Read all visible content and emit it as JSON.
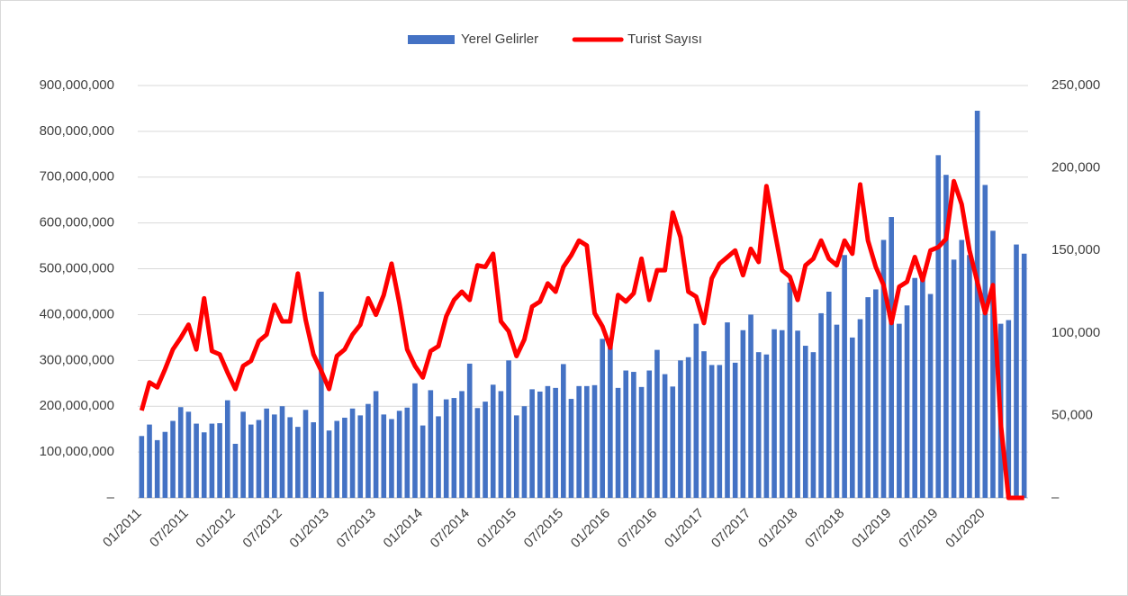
{
  "chart_data": {
    "type": "bar_line",
    "categories": [
      "01/2011",
      null,
      null,
      null,
      null,
      null,
      "07/2011",
      null,
      null,
      null,
      null,
      null,
      "01/2012",
      null,
      null,
      null,
      null,
      null,
      "07/2012",
      null,
      null,
      null,
      null,
      null,
      "01/2013",
      null,
      null,
      null,
      null,
      null,
      "07/2013",
      null,
      null,
      null,
      null,
      null,
      "01/2014",
      null,
      null,
      null,
      null,
      null,
      "07/2014",
      null,
      null,
      null,
      null,
      null,
      "01/2015",
      null,
      null,
      null,
      null,
      null,
      "07/2015",
      null,
      null,
      null,
      null,
      null,
      "01/2016",
      null,
      null,
      null,
      null,
      null,
      "07/2016",
      null,
      null,
      null,
      null,
      null,
      "01/2017",
      null,
      null,
      null,
      null,
      null,
      "07/2017",
      null,
      null,
      null,
      null,
      null,
      "01/2018",
      null,
      null,
      null,
      null,
      null,
      "07/2018",
      null,
      null,
      null,
      null,
      null,
      "01/2019",
      null,
      null,
      null,
      null,
      null,
      "07/2019",
      null,
      null,
      null,
      null,
      null,
      "01/2020",
      null,
      null,
      null,
      null,
      null
    ],
    "series": [
      {
        "name": "Yerel Gelirler",
        "color": "#4472c4",
        "kind": "bar",
        "values": [
          135000000,
          160000000,
          126000000,
          144000000,
          168000000,
          198000000,
          188000000,
          162000000,
          143000000,
          162000000,
          163000000,
          213000000,
          118000000,
          188000000,
          160000000,
          170000000,
          195000000,
          182000000,
          200000000,
          176000000,
          155000000,
          192000000,
          165000000,
          450000000,
          147000000,
          168000000,
          175000000,
          195000000,
          180000000,
          205000000,
          233000000,
          182000000,
          172000000,
          190000000,
          197000000,
          250000000,
          158000000,
          235000000,
          178000000,
          215000000,
          218000000,
          233000000,
          293000000,
          196000000,
          210000000,
          247000000,
          233000000,
          300000000,
          180000000,
          200000000,
          237000000,
          232000000,
          244000000,
          240000000,
          292000000,
          216000000,
          244000000,
          244000000,
          246000000,
          347000000,
          335000000,
          240000000,
          278000000,
          275000000,
          242000000,
          278000000,
          323000000,
          270000000,
          243000000,
          300000000,
          307000000,
          380000000,
          320000000,
          290000000,
          290000000,
          383000000,
          295000000,
          366000000,
          400000000,
          318000000,
          313000000,
          368000000,
          366000000,
          470000000,
          365000000,
          332000000,
          318000000,
          403000000,
          450000000,
          378000000,
          530000000,
          350000000,
          390000000,
          438000000,
          455000000,
          563000000,
          613000000,
          380000000,
          420000000,
          480000000,
          490000000,
          445000000,
          748000000,
          705000000,
          520000000,
          563000000,
          530000000,
          845000000,
          683000000,
          583000000,
          380000000,
          388000000,
          553000000,
          533000000
        ]
      },
      {
        "name": "Turist Sayısı",
        "color": "#ff0000",
        "kind": "line",
        "axis": "y2",
        "values": [
          53000,
          70000,
          67000,
          78000,
          90000,
          97000,
          105000,
          90000,
          121000,
          89000,
          87000,
          76000,
          66000,
          80000,
          83000,
          95000,
          99000,
          117000,
          107000,
          107000,
          136000,
          108000,
          87000,
          77000,
          66000,
          86000,
          90000,
          99000,
          105000,
          121000,
          111000,
          123000,
          142000,
          118000,
          90000,
          80000,
          73000,
          89000,
          92000,
          110000,
          120000,
          125000,
          120000,
          141000,
          140000,
          148000,
          107000,
          101000,
          86000,
          96000,
          116000,
          119000,
          130000,
          125000,
          140000,
          147000,
          156000,
          153000,
          112000,
          104000,
          91000,
          123000,
          119000,
          124000,
          145000,
          120000,
          138000,
          138000,
          173000,
          158000,
          125000,
          122000,
          106000,
          133000,
          142000,
          146000,
          150000,
          135000,
          151000,
          143000,
          189000,
          163000,
          138000,
          134000,
          120000,
          141000,
          145000,
          156000,
          145000,
          141000,
          156000,
          148000,
          190000,
          156000,
          140000,
          129000,
          106000,
          128000,
          131000,
          146000,
          132000,
          150000,
          152000,
          157000,
          192000,
          178000,
          150000,
          131000,
          112000,
          129000,
          45000,
          0,
          0,
          0
        ]
      }
    ],
    "ylim": [
      0,
      900000000
    ],
    "yticks": [
      {
        "value": 0,
        "label": "–"
      },
      {
        "value": 100000000,
        "label": "100,000,000"
      },
      {
        "value": 200000000,
        "label": "200,000,000"
      },
      {
        "value": 300000000,
        "label": "300,000,000"
      },
      {
        "value": 400000000,
        "label": "400,000,000"
      },
      {
        "value": 500000000,
        "label": "500,000,000"
      },
      {
        "value": 600000000,
        "label": "600,000,000"
      },
      {
        "value": 700000000,
        "label": "700,000,000"
      },
      {
        "value": 800000000,
        "label": "800,000,000"
      },
      {
        "value": 900000000,
        "label": "900,000,000"
      }
    ],
    "y2lim": [
      0,
      250000
    ],
    "y2ticks": [
      {
        "value": 0,
        "label": "–"
      },
      {
        "value": 50000,
        "label": "50,000"
      },
      {
        "value": 100000,
        "label": "100,000"
      },
      {
        "value": 150000,
        "label": "150,000"
      },
      {
        "value": 200000,
        "label": "200,000"
      },
      {
        "value": 250000,
        "label": "250,000"
      }
    ],
    "grid": true,
    "legend": "top"
  }
}
